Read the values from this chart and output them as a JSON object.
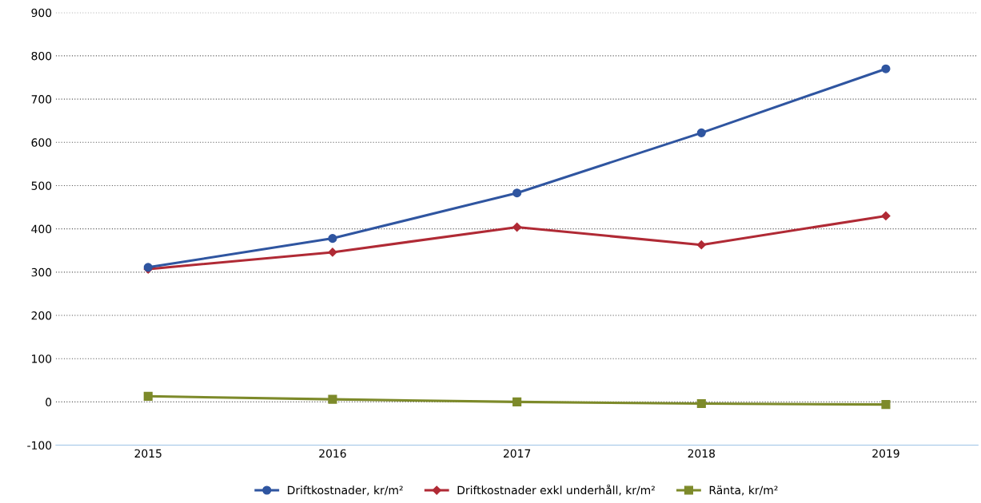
{
  "chart_data": {
    "type": "line",
    "categories": [
      "2015",
      "2016",
      "2017",
      "2018",
      "2019"
    ],
    "series": [
      {
        "name": "Driftkostnader, kr/m²",
        "color": "#2f55a0",
        "marker": "circle",
        "values": [
          311,
          378,
          483,
          622,
          770
        ]
      },
      {
        "name": "Driftkostnader exkl underhåll, kr/m²",
        "color": "#b02a35",
        "marker": "diamond",
        "values": [
          307,
          346,
          404,
          363,
          430
        ]
      },
      {
        "name": "Ränta, kr/m²",
        "color": "#7d8a2a",
        "marker": "square",
        "values": [
          13,
          6,
          0,
          -4,
          -6
        ]
      }
    ],
    "ylim": [
      -100,
      900
    ],
    "yticks": [
      -100,
      0,
      100,
      200,
      300,
      400,
      500,
      600,
      700,
      800,
      900
    ],
    "grid": "y",
    "legend": "bottom"
  }
}
